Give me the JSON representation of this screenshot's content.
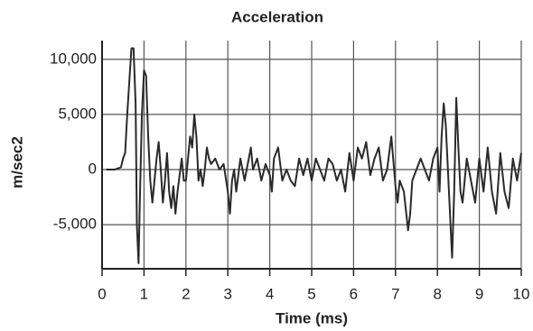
{
  "chart_data": {
    "type": "line",
    "title": "Acceleration",
    "x_label": "Time (ms)",
    "y_label": "m/sec2",
    "x": [
      0.1,
      0.3,
      0.45,
      0.5,
      0.55,
      0.6,
      0.65,
      0.7,
      0.75,
      0.8,
      0.83,
      0.87,
      0.9,
      0.95,
      1.0,
      1.05,
      1.1,
      1.15,
      1.2,
      1.25,
      1.3,
      1.35,
      1.4,
      1.45,
      1.5,
      1.55,
      1.6,
      1.65,
      1.7,
      1.75,
      1.8,
      1.9,
      1.95,
      2.0,
      2.05,
      2.1,
      2.15,
      2.2,
      2.25,
      2.3,
      2.35,
      2.4,
      2.45,
      2.5,
      2.55,
      2.6,
      2.7,
      2.8,
      2.9,
      3.0,
      3.05,
      3.1,
      3.15,
      3.2,
      3.3,
      3.4,
      3.5,
      3.55,
      3.6,
      3.7,
      3.8,
      3.9,
      4.0,
      4.05,
      4.1,
      4.2,
      4.3,
      4.4,
      4.5,
      4.6,
      4.7,
      4.8,
      4.9,
      5.0,
      5.1,
      5.2,
      5.3,
      5.4,
      5.5,
      5.6,
      5.7,
      5.8,
      5.9,
      6.0,
      6.1,
      6.2,
      6.3,
      6.4,
      6.5,
      6.6,
      6.7,
      6.8,
      6.9,
      7.0,
      7.05,
      7.1,
      7.2,
      7.3,
      7.35,
      7.4,
      7.5,
      7.6,
      7.7,
      7.8,
      7.9,
      8.0,
      8.05,
      8.1,
      8.15,
      8.2,
      8.25,
      8.3,
      8.35,
      8.4,
      8.45,
      8.5,
      8.55,
      8.6,
      8.7,
      8.8,
      8.9,
      9.0,
      9.1,
      9.2,
      9.3,
      9.4,
      9.5,
      9.6,
      9.7,
      9.8,
      9.9,
      10.0
    ],
    "series": [
      {
        "name": "Acceleration",
        "color": "#2a2a2a",
        "values": [
          0,
          0,
          200,
          1000,
          1500,
          5000,
          8000,
          11000,
          11000,
          6000,
          -5000,
          -8500,
          -3000,
          5000,
          9000,
          8500,
          3000,
          -1000,
          -3000,
          -1000,
          1000,
          2500,
          0,
          -3000,
          -1000,
          1500,
          -2000,
          -3500,
          -1500,
          -4000,
          -2000,
          1000,
          -1000,
          -1000,
          1000,
          3000,
          2000,
          5000,
          3000,
          -1000,
          0,
          -1500,
          0,
          2000,
          1000,
          500,
          1000,
          0,
          500,
          -2000,
          -4000,
          -1000,
          0,
          -2000,
          1000,
          -1000,
          1000,
          2000,
          0,
          1000,
          -1000,
          500,
          -500,
          -2000,
          1000,
          2000,
          -1000,
          0,
          -1000,
          -1500,
          1000,
          -500,
          1000,
          -1000,
          1000,
          0,
          -1000,
          1000,
          500,
          -1000,
          0,
          -2000,
          1500,
          -1000,
          2000,
          1000,
          2500,
          -500,
          1000,
          2000,
          -1000,
          0,
          3000,
          -1500,
          -3000,
          -1000,
          -2000,
          -5500,
          -4000,
          -1000,
          0,
          1000,
          0,
          -1000,
          1000,
          2000,
          -2000,
          3000,
          6000,
          4000,
          0,
          -4000,
          -8000,
          -2000,
          6500,
          2000,
          -2000,
          -3000,
          1000,
          -1000,
          -3000,
          1000,
          -2000,
          2000,
          -2000,
          -4000,
          1500,
          -2000,
          -3500,
          1000,
          -1000,
          1500
        ]
      }
    ],
    "xlim": [
      0,
      10
    ],
    "xticks": [
      0,
      1,
      2,
      3,
      4,
      5,
      6,
      7,
      8,
      9,
      10
    ],
    "ylim": [
      -9000,
      11700
    ],
    "yticks": [
      {
        "value": -5000,
        "label": "-5,000"
      },
      {
        "value": 0,
        "label": "0"
      },
      {
        "value": 5000,
        "label": "5,000"
      },
      {
        "value": 10000,
        "label": "10,000"
      }
    ],
    "grid": true
  }
}
